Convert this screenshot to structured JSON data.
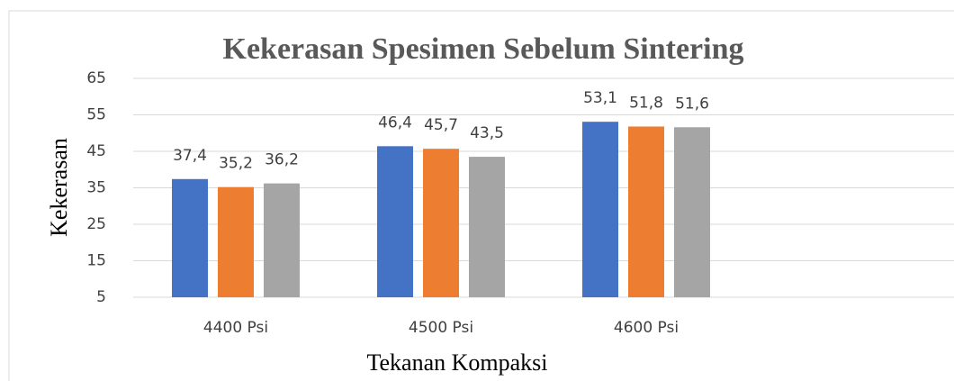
{
  "chart_data": {
    "type": "bar",
    "title": "Kekerasan Spesimen Sebelum Sintering",
    "x_label": "Tekanan Kompaksi",
    "y_label": "Kekerasan",
    "categories": [
      "4400 Psi",
      "4500 Psi",
      "4600 Psi",
      null
    ],
    "series": [
      {
        "color": "#4472c4",
        "values": [
          37.4,
          46.4,
          53.1,
          null
        ],
        "value_labels": [
          "37,4",
          "46,4",
          "53,1",
          null
        ]
      },
      {
        "color": "#ed7d31",
        "values": [
          35.2,
          45.7,
          51.8,
          null
        ],
        "value_labels": [
          "35,2",
          "45,7",
          "51,8",
          null
        ]
      },
      {
        "color": "#a5a5a5",
        "values": [
          36.2,
          43.5,
          51.6,
          null
        ],
        "value_labels": [
          "36,2",
          "43,5",
          "51,6",
          null
        ]
      }
    ],
    "ylim": [
      5,
      65
    ],
    "yticks": [
      5,
      15,
      25,
      35,
      45,
      55,
      65
    ],
    "grid": true
  }
}
